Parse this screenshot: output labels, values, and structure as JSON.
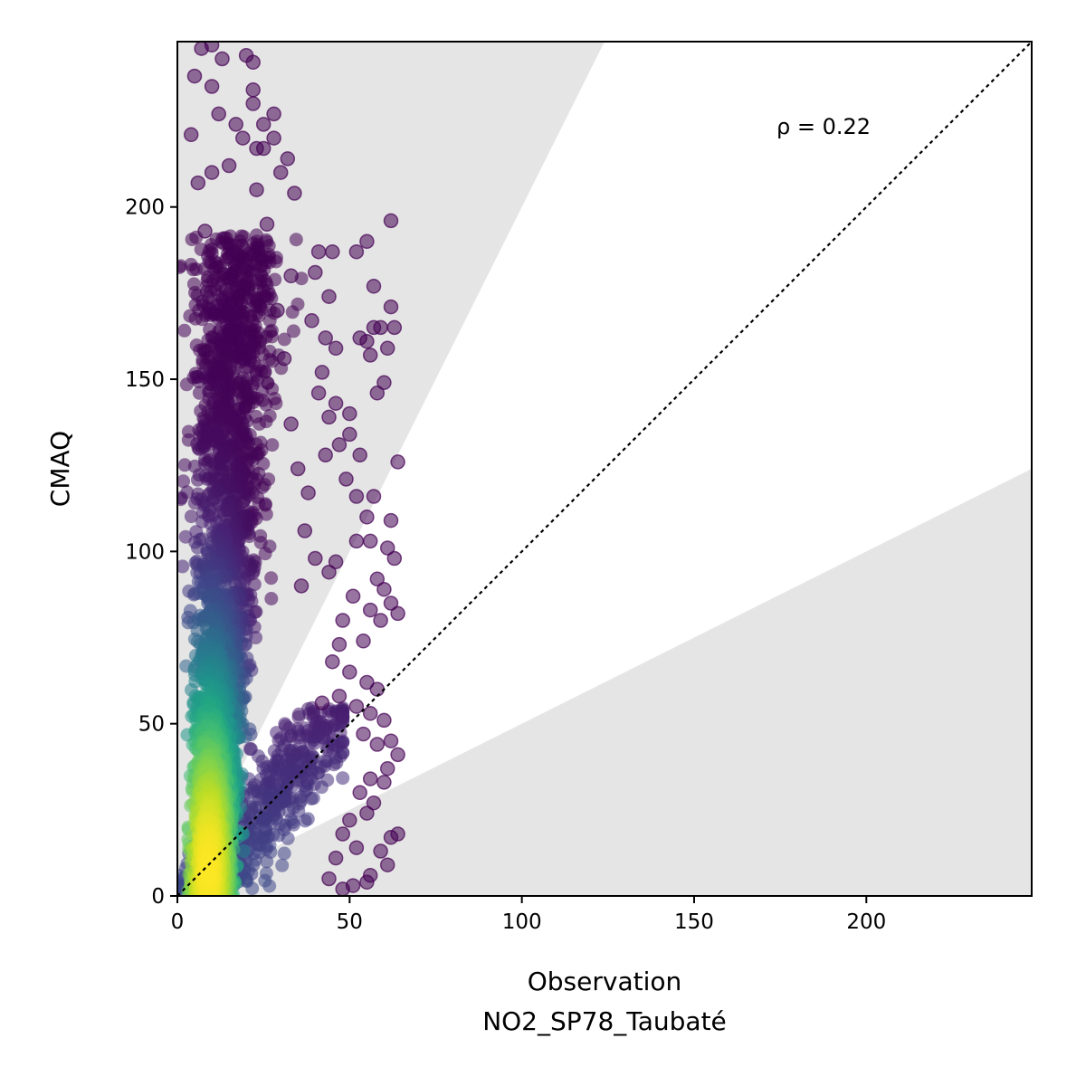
{
  "chart_data": {
    "type": "scatter",
    "title": "",
    "xlabel": "Observation",
    "xlabel_sub": "NO2_SP78_Taubaté",
    "ylabel": "CMAQ",
    "xlim": [
      0,
      248
    ],
    "ylim": [
      0,
      248
    ],
    "x_ticks": [
      0,
      50,
      100,
      150,
      200
    ],
    "y_ticks": [
      0,
      50,
      100,
      150,
      200
    ],
    "x_tick_labels": [
      "0",
      "50",
      "100",
      "150",
      "200"
    ],
    "y_tick_labels": [
      "0",
      "50",
      "100",
      "150",
      "200"
    ],
    "annotation": "ρ = 0.22",
    "reference_line": {
      "type": "1:1",
      "style": "dotted"
    },
    "shaded_region": {
      "description": "outside factor-of-2 band",
      "lower_slope": 0.5,
      "upper_slope": 2.0
    },
    "colormap": "viridis",
    "color_meaning": "point density",
    "grid": false,
    "point_cloud": {
      "x_range": [
        0,
        65
      ],
      "y_range": [
        0,
        248
      ],
      "dense_core": {
        "x": [
          3,
          25
        ],
        "y": [
          0,
          190
        ]
      },
      "peak": {
        "x": 8,
        "y": 10
      }
    },
    "outlier_points": [
      [
        62,
        196
      ],
      [
        52,
        187
      ],
      [
        55,
        190
      ],
      [
        57,
        177
      ],
      [
        45,
        187
      ],
      [
        62,
        171
      ],
      [
        59,
        165
      ],
      [
        63,
        165
      ],
      [
        57,
        165
      ],
      [
        53,
        162
      ],
      [
        55,
        161
      ],
      [
        41,
        187
      ],
      [
        33,
        180
      ],
      [
        26,
        195
      ],
      [
        23,
        205
      ],
      [
        30,
        210
      ],
      [
        25,
        217
      ],
      [
        19,
        220
      ],
      [
        17,
        224
      ],
      [
        12,
        227
      ],
      [
        23,
        217
      ],
      [
        28,
        220
      ],
      [
        25,
        224
      ],
      [
        32,
        214
      ],
      [
        34,
        204
      ],
      [
        28,
        227
      ],
      [
        22,
        234
      ],
      [
        22,
        230
      ],
      [
        10,
        235
      ],
      [
        5,
        238
      ],
      [
        13,
        243
      ],
      [
        20,
        244
      ],
      [
        22,
        242
      ],
      [
        7,
        246
      ],
      [
        10,
        247
      ],
      [
        4,
        221
      ],
      [
        6,
        207
      ],
      [
        10,
        210
      ],
      [
        15,
        212
      ],
      [
        8,
        193
      ],
      [
        40,
        181
      ],
      [
        44,
        174
      ],
      [
        39,
        167
      ],
      [
        43,
        162
      ],
      [
        46,
        159
      ],
      [
        42,
        152
      ],
      [
        46,
        143
      ],
      [
        50,
        140
      ],
      [
        47,
        131
      ],
      [
        53,
        128
      ],
      [
        49,
        121
      ],
      [
        52,
        116
      ],
      [
        57,
        116
      ],
      [
        55,
        110
      ],
      [
        62,
        109
      ],
      [
        64,
        126
      ],
      [
        56,
        103
      ],
      [
        61,
        101
      ],
      [
        63,
        98
      ],
      [
        58,
        92
      ],
      [
        52,
        103
      ],
      [
        46,
        97
      ],
      [
        44,
        94
      ],
      [
        60,
        89
      ],
      [
        62,
        85
      ],
      [
        64,
        82
      ],
      [
        59,
        80
      ],
      [
        56,
        83
      ],
      [
        51,
        87
      ],
      [
        48,
        80
      ],
      [
        47,
        73
      ],
      [
        54,
        74
      ],
      [
        45,
        68
      ],
      [
        50,
        65
      ],
      [
        55,
        62
      ],
      [
        58,
        60
      ],
      [
        47,
        58
      ],
      [
        42,
        56
      ],
      [
        52,
        55
      ],
      [
        56,
        53
      ],
      [
        60,
        51
      ],
      [
        54,
        47
      ],
      [
        62,
        45
      ],
      [
        58,
        44
      ],
      [
        64,
        41
      ],
      [
        61,
        37
      ],
      [
        56,
        34
      ],
      [
        60,
        33
      ],
      [
        53,
        30
      ],
      [
        57,
        27
      ],
      [
        55,
        24
      ],
      [
        50,
        22
      ],
      [
        48,
        18
      ],
      [
        52,
        14
      ],
      [
        62,
        17
      ],
      [
        64,
        18
      ],
      [
        59,
        13
      ],
      [
        61,
        9
      ],
      [
        56,
        6
      ],
      [
        51,
        3
      ],
      [
        55,
        4
      ],
      [
        48,
        2
      ],
      [
        44,
        5
      ],
      [
        46,
        11
      ],
      [
        58,
        146
      ],
      [
        60,
        149
      ],
      [
        56,
        157
      ],
      [
        61,
        159
      ],
      [
        50,
        134
      ],
      [
        44,
        139
      ],
      [
        43,
        128
      ],
      [
        41,
        146
      ],
      [
        38,
        117
      ],
      [
        37,
        106
      ],
      [
        40,
        98
      ],
      [
        36,
        90
      ],
      [
        35,
        124
      ],
      [
        33,
        137
      ],
      [
        31,
        156
      ],
      [
        29,
        170
      ]
    ]
  }
}
